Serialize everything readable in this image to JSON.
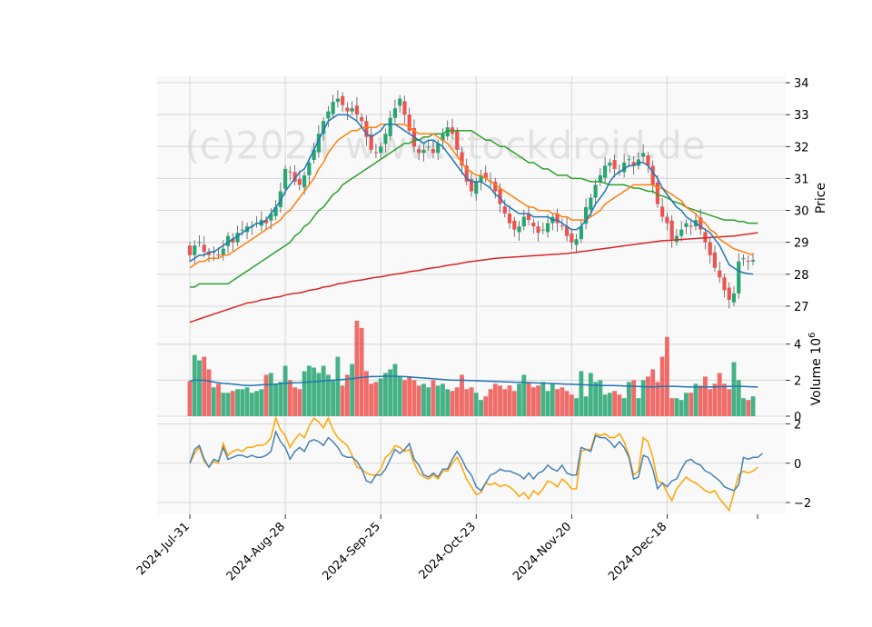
{
  "chart_data": {
    "type": "candlestick",
    "watermark": "(c)2024 www.stockdroid.de",
    "colors": {
      "up": "#26a672",
      "down": "#ef5350",
      "ma_fast": "#1f77b4",
      "ma_mid": "#ff7f0e",
      "ma_slow": "#2ca02c",
      "ma_long": "#d62728",
      "vol_ma": "#1f77b4",
      "osc_a": "#4682b4",
      "osc_b": "#ffa500"
    },
    "x_tick_labels": [
      "2024-Jul-31",
      "2024-Aug-28",
      "2024-Sep-25",
      "2024-Oct-23",
      "2024-Nov-20",
      "2024-Dec-18"
    ],
    "x_tick_index": [
      0,
      20,
      40,
      60,
      80,
      100
    ],
    "price_panel": {
      "ylabel": "Price",
      "ylim": [
        26.6,
        34.2
      ],
      "ticks": [
        27,
        28,
        29,
        30,
        31,
        32,
        33,
        34
      ],
      "close": [
        28.6,
        28.9,
        29.0,
        28.7,
        28.6,
        28.7,
        28.6,
        28.8,
        29.2,
        29.0,
        29.3,
        29.4,
        29.5,
        29.5,
        29.6,
        29.7,
        29.6,
        29.9,
        30.1,
        30.6,
        31.3,
        31.2,
        30.9,
        30.8,
        31.1,
        31.5,
        31.9,
        32.4,
        32.8,
        33.1,
        33.4,
        33.5,
        33.3,
        33.1,
        33.2,
        33.0,
        32.8,
        32.3,
        31.9,
        31.8,
        32.0,
        32.4,
        32.9,
        33.2,
        33.5,
        33.0,
        32.5,
        32.0,
        31.8,
        31.9,
        32.0,
        31.8,
        32.1,
        32.4,
        32.6,
        32.4,
        31.9,
        31.4,
        30.9,
        30.6,
        30.9,
        31.1,
        31.0,
        30.9,
        30.6,
        30.2,
        29.9,
        29.6,
        29.4,
        29.5,
        29.8,
        29.7,
        29.5,
        29.3,
        29.4,
        29.6,
        29.8,
        29.6,
        29.5,
        29.2,
        29.0,
        29.1,
        29.5,
        30.1,
        30.4,
        30.8,
        31.1,
        31.4,
        31.5,
        31.3,
        31.2,
        31.5,
        31.6,
        31.4,
        31.6,
        31.8,
        31.4,
        30.8,
        30.2,
        29.8,
        29.6,
        29.1,
        29.2,
        29.4,
        29.6,
        29.5,
        29.7,
        29.4,
        29.0,
        28.6,
        28.2,
        27.9,
        27.5,
        27.2,
        27.4,
        28.4,
        28.5,
        28.4,
        28.45
      ],
      "ma_fast": [
        28.4,
        28.5,
        28.6,
        28.6,
        28.7,
        28.7,
        28.8,
        28.9,
        29.0,
        29.1,
        29.2,
        29.3,
        29.4,
        29.5,
        29.6,
        29.6,
        29.7,
        29.9,
        30.1,
        30.3,
        30.6,
        30.8,
        31.0,
        31.2,
        31.3,
        31.6,
        31.9,
        32.2,
        32.5,
        32.8,
        32.9,
        33.0,
        33.0,
        33.0,
        32.9,
        32.8,
        32.6,
        32.4,
        32.3,
        32.4,
        32.5,
        32.7,
        32.7,
        32.7,
        32.6,
        32.5,
        32.4,
        32.3,
        32.2,
        32.1,
        32.2,
        32.2,
        32.1,
        32.0,
        31.8,
        31.6,
        31.4,
        31.2,
        31.0,
        30.9,
        30.9,
        30.9,
        30.8,
        30.7,
        30.5,
        30.4,
        30.2,
        30.1,
        30.0,
        29.9,
        29.9,
        29.9,
        29.8,
        29.8,
        29.8,
        29.8,
        29.7,
        29.7,
        29.6,
        29.5,
        29.4,
        29.4,
        29.5,
        29.7,
        29.9,
        30.2,
        30.4,
        30.6,
        30.9,
        31.1,
        31.2,
        31.3,
        31.4,
        31.4,
        31.5,
        31.5,
        31.4,
        31.2,
        31.0,
        30.7,
        30.5,
        30.3,
        30.1,
        30.0,
        29.8,
        29.7,
        29.6,
        29.5,
        29.4,
        29.3,
        29.1,
        28.9,
        28.6,
        28.3,
        28.2,
        28.1,
        28.05,
        28.02,
        28.0
      ],
      "ma_mid": [
        28.2,
        28.3,
        28.4,
        28.4,
        28.5,
        28.5,
        28.5,
        28.6,
        28.6,
        28.7,
        28.8,
        28.9,
        29.0,
        29.1,
        29.2,
        29.3,
        29.4,
        29.5,
        29.6,
        29.7,
        29.9,
        30.0,
        30.2,
        30.4,
        30.6,
        30.8,
        31.0,
        31.3,
        31.5,
        31.8,
        32.0,
        32.2,
        32.3,
        32.4,
        32.5,
        32.5,
        32.6,
        32.6,
        32.6,
        32.6,
        32.7,
        32.7,
        32.7,
        32.7,
        32.7,
        32.7,
        32.6,
        32.5,
        32.4,
        32.4,
        32.4,
        32.4,
        32.3,
        32.2,
        32.1,
        31.9,
        31.7,
        31.5,
        31.3,
        31.2,
        31.1,
        31.1,
        31.0,
        30.9,
        30.8,
        30.7,
        30.6,
        30.5,
        30.4,
        30.3,
        30.2,
        30.1,
        30.1,
        30.0,
        30.0,
        30.0,
        29.9,
        29.9,
        29.8,
        29.8,
        29.7,
        29.7,
        29.7,
        29.7,
        29.8,
        29.9,
        30.0,
        30.2,
        30.3,
        30.4,
        30.5,
        30.6,
        30.7,
        30.8,
        30.8,
        30.8,
        30.8,
        30.8,
        30.7,
        30.7,
        30.6,
        30.5,
        30.4,
        30.3,
        30.1,
        30.0,
        29.9,
        29.7,
        29.6,
        29.4,
        29.3,
        29.1,
        29.0,
        28.9,
        28.8,
        28.75,
        28.7,
        28.65,
        28.6
      ],
      "ma_slow": [
        27.6,
        27.6,
        27.7,
        27.7,
        27.7,
        27.7,
        27.7,
        27.7,
        27.7,
        27.8,
        27.9,
        28.0,
        28.1,
        28.2,
        28.3,
        28.4,
        28.5,
        28.6,
        28.7,
        28.8,
        28.9,
        29.0,
        29.2,
        29.3,
        29.5,
        29.6,
        29.8,
        30.0,
        30.1,
        30.3,
        30.5,
        30.6,
        30.8,
        30.9,
        31.0,
        31.1,
        31.2,
        31.3,
        31.4,
        31.5,
        31.6,
        31.7,
        31.8,
        31.9,
        32.0,
        32.1,
        32.1,
        32.2,
        32.2,
        32.3,
        32.3,
        32.4,
        32.4,
        32.4,
        32.5,
        32.5,
        32.5,
        32.5,
        32.5,
        32.5,
        32.4,
        32.3,
        32.2,
        32.2,
        32.1,
        32.0,
        32.0,
        31.9,
        31.8,
        31.7,
        31.6,
        31.5,
        31.5,
        31.4,
        31.3,
        31.3,
        31.2,
        31.1,
        31.1,
        31.1,
        31.0,
        31.0,
        31.0,
        30.95,
        30.9,
        30.9,
        30.9,
        30.85,
        30.8,
        30.8,
        30.8,
        30.8,
        30.75,
        30.7,
        30.7,
        30.65,
        30.6,
        30.6,
        30.5,
        30.45,
        30.4,
        30.3,
        30.25,
        30.2,
        30.1,
        30.05,
        30.0,
        29.95,
        29.9,
        29.85,
        29.8,
        29.75,
        29.7,
        29.7,
        29.7,
        29.65,
        29.65,
        29.6,
        29.6,
        29.6
      ],
      "ma_long": [
        26.5,
        26.55,
        26.6,
        26.65,
        26.7,
        26.75,
        26.8,
        26.85,
        26.9,
        26.95,
        27.0,
        27.05,
        27.1,
        27.12,
        27.15,
        27.2,
        27.22,
        27.25,
        27.28,
        27.3,
        27.35,
        27.38,
        27.4,
        27.42,
        27.45,
        27.5,
        27.52,
        27.55,
        27.6,
        27.62,
        27.65,
        27.7,
        27.72,
        27.75,
        27.78,
        27.8,
        27.82,
        27.85,
        27.88,
        27.9,
        27.92,
        27.95,
        27.98,
        28.0,
        28.02,
        28.05,
        28.08,
        28.1,
        28.12,
        28.15,
        28.18,
        28.2,
        28.22,
        28.25,
        28.28,
        28.3,
        28.32,
        28.35,
        28.38,
        28.4,
        28.42,
        28.44,
        28.46,
        28.48,
        28.5,
        28.51,
        28.52,
        28.53,
        28.54,
        28.55,
        28.56,
        28.57,
        28.58,
        28.59,
        28.6,
        28.61,
        28.62,
        28.63,
        28.64,
        28.65,
        28.67,
        28.69,
        28.71,
        28.73,
        28.75,
        28.77,
        28.79,
        28.81,
        28.83,
        28.85,
        28.87,
        28.89,
        28.91,
        28.93,
        28.95,
        28.97,
        28.99,
        29.01,
        29.03,
        29.05,
        29.06,
        29.07,
        29.08,
        29.09,
        29.1,
        29.11,
        29.12,
        29.13,
        29.14,
        29.15,
        29.16,
        29.17,
        29.18,
        29.19,
        29.2,
        29.22,
        29.24,
        29.26,
        29.28,
        29.3
      ]
    },
    "volume_panel": {
      "ylabel": "Volume  10",
      "ylabel_exponent": "6",
      "ylim": [
        0,
        5.4
      ],
      "ticks": [
        0,
        2,
        4
      ],
      "values": [
        1.95,
        3.4,
        3.1,
        3.3,
        2.6,
        1.6,
        1.8,
        1.3,
        1.3,
        1.4,
        1.5,
        1.5,
        1.6,
        1.3,
        1.4,
        1.5,
        2.3,
        2.4,
        1.8,
        1.9,
        2.8,
        2.0,
        1.6,
        1.5,
        2.5,
        2.8,
        2.7,
        2.4,
        2.8,
        2.3,
        2.0,
        3.3,
        1.7,
        2.3,
        2.9,
        5.3,
        4.9,
        2.5,
        1.8,
        1.9,
        2.1,
        2.4,
        2.6,
        2.9,
        2.2,
        2.0,
        2.2,
        2.0,
        1.7,
        1.8,
        1.6,
        2.0,
        1.7,
        1.8,
        1.5,
        1.4,
        1.6,
        2.3,
        1.5,
        1.6,
        1.3,
        0.9,
        1.1,
        1.5,
        1.8,
        1.7,
        1.5,
        1.7,
        1.4,
        1.8,
        2.3,
        1.9,
        1.6,
        1.7,
        1.9,
        1.4,
        1.8,
        1.5,
        1.6,
        1.4,
        1.2,
        1.0,
        2.5,
        1.1,
        2.4,
        1.9,
        2.0,
        1.2,
        1.3,
        1.4,
        1.2,
        1.0,
        1.9,
        2.0,
        1.0,
        2.0,
        2.2,
        2.6,
        1.9,
        3.3,
        4.4,
        1.0,
        1.0,
        0.9,
        1.3,
        1.3,
        1.8,
        1.7,
        2.2,
        1.5,
        1.8,
        2.4,
        1.8,
        1.5,
        3.0,
        2.0,
        1.0,
        0.9,
        1.1
      ],
      "ma": [
        1.95,
        2.0,
        2.0,
        2.0,
        1.95,
        1.9,
        1.85,
        1.82,
        1.8,
        1.78,
        1.75,
        1.72,
        1.7,
        1.7,
        1.72,
        1.74,
        1.75,
        1.76,
        1.78,
        1.8,
        1.82,
        1.84,
        1.85,
        1.86,
        1.88,
        1.9,
        1.92,
        1.94,
        1.96,
        1.98,
        2.0,
        2.02,
        2.04,
        2.06,
        2.08,
        2.12,
        2.15,
        2.18,
        2.2,
        2.2,
        2.21,
        2.22,
        2.22,
        2.22,
        2.21,
        2.2,
        2.18,
        2.16,
        2.14,
        2.12,
        2.1,
        2.08,
        2.06,
        2.04,
        2.02,
        2.0,
        2.0,
        2.0,
        1.99,
        1.98,
        1.97,
        1.96,
        1.95,
        1.94,
        1.93,
        1.92,
        1.91,
        1.9,
        1.89,
        1.88,
        1.87,
        1.86,
        1.85,
        1.84,
        1.83,
        1.82,
        1.81,
        1.8,
        1.79,
        1.78,
        1.77,
        1.76,
        1.75,
        1.74,
        1.73,
        1.72,
        1.71,
        1.7,
        1.7,
        1.7,
        1.69,
        1.68,
        1.67,
        1.66,
        1.65,
        1.64,
        1.63,
        1.63,
        1.64,
        1.65,
        1.66,
        1.66,
        1.65,
        1.64,
        1.63,
        1.62,
        1.62,
        1.62,
        1.62,
        1.62,
        1.63,
        1.64,
        1.64,
        1.65,
        1.66,
        1.66,
        1.65,
        1.64,
        1.63,
        1.62
      ]
    },
    "oscillator_panel": {
      "ylim": [
        -2.6,
        2.3
      ],
      "ticks": [
        -2,
        0,
        2
      ],
      "series_a": [
        0.0,
        0.7,
        0.9,
        0.2,
        -0.2,
        0.2,
        0.1,
        0.8,
        0.2,
        0.3,
        0.4,
        0.4,
        0.3,
        0.4,
        0.3,
        0.3,
        0.4,
        0.6,
        1.6,
        1.1,
        0.8,
        0.2,
        0.6,
        0.8,
        0.6,
        1.1,
        1.2,
        1.1,
        0.9,
        1.3,
        1.1,
        0.8,
        0.4,
        0.3,
        0.3,
        0.1,
        -0.3,
        -0.9,
        -1.0,
        -0.6,
        -0.6,
        -0.3,
        0.2,
        0.7,
        0.5,
        0.7,
        1.0,
        0.2,
        -0.1,
        -0.6,
        -0.7,
        -0.5,
        -0.7,
        -0.3,
        -0.3,
        0.2,
        0.6,
        0.2,
        -0.3,
        -0.6,
        -1.2,
        -1.4,
        -1.0,
        -0.6,
        -0.5,
        -0.3,
        -0.4,
        -0.4,
        -0.5,
        -0.6,
        -0.8,
        -0.5,
        -0.8,
        -0.5,
        -0.4,
        -0.1,
        -0.3,
        -0.4,
        -0.1,
        -0.5,
        -0.6,
        -0.6,
        0.8,
        0.7,
        0.6,
        1.4,
        1.3,
        1.3,
        1.1,
        0.8,
        1.1,
        0.8,
        0.3,
        -0.8,
        -0.7,
        0.4,
        0.3,
        -0.3,
        -1.3,
        -1.0,
        -1.2,
        -0.9,
        -0.8,
        -0.3,
        0.1,
        0.2,
        0.0,
        -0.1,
        -0.4,
        -0.5,
        -0.7,
        -0.9,
        -1.2,
        -1.3,
        -1.4,
        -1.1,
        0.3,
        0.2,
        0.3,
        0.3,
        0.5
      ],
      "series_b": [
        0.0,
        0.5,
        0.8,
        0.1,
        -0.2,
        0.1,
        0.0,
        1.0,
        0.4,
        0.6,
        0.7,
        0.6,
        0.8,
        0.8,
        0.9,
        0.9,
        1.0,
        1.3,
        2.3,
        1.7,
        1.4,
        0.8,
        1.2,
        1.5,
        1.3,
        1.9,
        2.3,
        2.1,
        1.8,
        2.3,
        1.7,
        1.3,
        1.1,
        0.9,
        0.4,
        -0.2,
        -0.3,
        -0.5,
        -0.6,
        -0.6,
        -0.3,
        0.3,
        0.5,
        0.9,
        0.8,
        0.6,
        0.7,
        0.0,
        -0.5,
        -0.7,
        -0.8,
        -0.6,
        -0.8,
        -0.4,
        -0.4,
        0.0,
        0.3,
        -0.2,
        -0.8,
        -1.2,
        -1.6,
        -1.5,
        -1.0,
        -1.1,
        -1.0,
        -1.2,
        -1.1,
        -1.2,
        -1.4,
        -1.7,
        -1.5,
        -1.8,
        -1.4,
        -1.6,
        -1.3,
        -0.9,
        -1.0,
        -1.2,
        -0.8,
        -1.0,
        -1.3,
        -1.3,
        0.6,
        0.7,
        0.7,
        1.5,
        1.4,
        1.5,
        1.3,
        1.3,
        1.5,
        1.1,
        0.4,
        -0.6,
        -0.4,
        1.3,
        1.1,
        0.3,
        -0.9,
        -1.0,
        -1.5,
        -1.9,
        -1.3,
        -1.0,
        -0.7,
        -0.9,
        -1.0,
        -1.2,
        -1.4,
        -1.5,
        -1.4,
        -1.8,
        -2.1,
        -2.4,
        -1.5,
        -0.6,
        -0.4,
        -0.5,
        -0.4,
        -0.2
      ]
    }
  }
}
